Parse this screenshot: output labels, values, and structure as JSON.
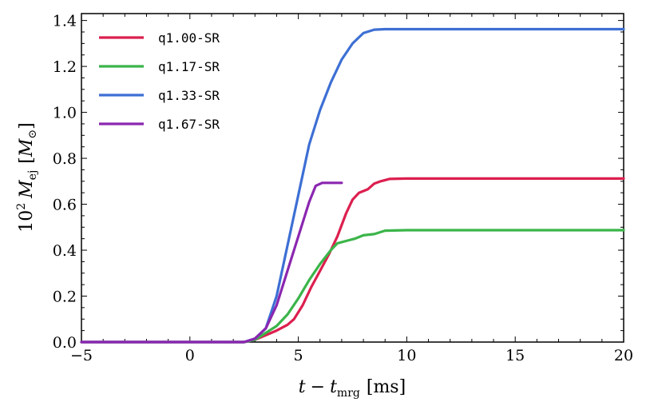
{
  "chart_data": {
    "type": "line",
    "title": "",
    "xlabel_parts": {
      "t": "t",
      "minus": "−",
      "tsub": "t",
      "sub": "mrg",
      "unit": "[ms]"
    },
    "ylabel_parts": {
      "pre": "10",
      "exp": "2",
      "M": "M",
      "sub": "ej",
      "unit_open": "[",
      "unit_M": "M",
      "unit_sub": "⊙",
      "unit_close": "]"
    },
    "xlim": [
      -5,
      20
    ],
    "ylim": [
      0.0,
      1.43
    ],
    "xticks": [
      -5,
      0,
      5,
      10,
      15,
      20
    ],
    "xtick_labels": [
      "−5",
      "0",
      "5",
      "10",
      "15",
      "20"
    ],
    "yticks": [
      0.0,
      0.2,
      0.4,
      0.6,
      0.8,
      1.0,
      1.2,
      1.4
    ],
    "ytick_labels": [
      "0.0",
      "0.2",
      "0.4",
      "0.6",
      "0.8",
      "1.0",
      "1.2",
      "1.4"
    ],
    "legend_position": "top-left",
    "series": [
      {
        "name": "q1.00-SR",
        "color": "#dc1f4f",
        "points": [
          [
            -5,
            0
          ],
          [
            2.5,
            0
          ],
          [
            3.0,
            0.01
          ],
          [
            3.5,
            0.03
          ],
          [
            4.0,
            0.05
          ],
          [
            4.5,
            0.075
          ],
          [
            4.8,
            0.1
          ],
          [
            5.2,
            0.16
          ],
          [
            5.6,
            0.24
          ],
          [
            6.0,
            0.31
          ],
          [
            6.4,
            0.38
          ],
          [
            6.8,
            0.46
          ],
          [
            7.2,
            0.56
          ],
          [
            7.5,
            0.62
          ],
          [
            7.8,
            0.65
          ],
          [
            8.2,
            0.665
          ],
          [
            8.5,
            0.69
          ],
          [
            8.8,
            0.7
          ],
          [
            9.2,
            0.71
          ],
          [
            10,
            0.712
          ],
          [
            20,
            0.712
          ]
        ]
      },
      {
        "name": "q1.17-SR",
        "color": "#3bb54a",
        "points": [
          [
            -5,
            0
          ],
          [
            2.5,
            0
          ],
          [
            3.0,
            0.01
          ],
          [
            3.5,
            0.04
          ],
          [
            4.0,
            0.07
          ],
          [
            4.5,
            0.12
          ],
          [
            5.0,
            0.19
          ],
          [
            5.5,
            0.27
          ],
          [
            6.0,
            0.34
          ],
          [
            6.5,
            0.4
          ],
          [
            6.8,
            0.43
          ],
          [
            7.2,
            0.44
          ],
          [
            7.6,
            0.45
          ],
          [
            8.0,
            0.465
          ],
          [
            8.5,
            0.47
          ],
          [
            9.0,
            0.485
          ],
          [
            10,
            0.487
          ],
          [
            20,
            0.487
          ]
        ]
      },
      {
        "name": "q1.33-SR",
        "color": "#3d6fd4",
        "points": [
          [
            -5,
            0
          ],
          [
            2.5,
            0
          ],
          [
            3.0,
            0.015
          ],
          [
            3.5,
            0.06
          ],
          [
            4.0,
            0.2
          ],
          [
            4.5,
            0.42
          ],
          [
            5.0,
            0.64
          ],
          [
            5.5,
            0.86
          ],
          [
            6.0,
            1.01
          ],
          [
            6.5,
            1.13
          ],
          [
            7.0,
            1.23
          ],
          [
            7.5,
            1.3
          ],
          [
            8.0,
            1.345
          ],
          [
            8.5,
            1.36
          ],
          [
            9.0,
            1.362
          ],
          [
            20,
            1.362
          ]
        ]
      },
      {
        "name": "q1.67-SR",
        "color": "#8b27b0",
        "points": [
          [
            -5,
            0
          ],
          [
            2.5,
            0
          ],
          [
            3.0,
            0.015
          ],
          [
            3.5,
            0.06
          ],
          [
            4.0,
            0.16
          ],
          [
            4.5,
            0.31
          ],
          [
            5.0,
            0.46
          ],
          [
            5.5,
            0.61
          ],
          [
            5.8,
            0.68
          ],
          [
            6.1,
            0.693
          ],
          [
            7.0,
            0.693
          ]
        ]
      }
    ]
  }
}
